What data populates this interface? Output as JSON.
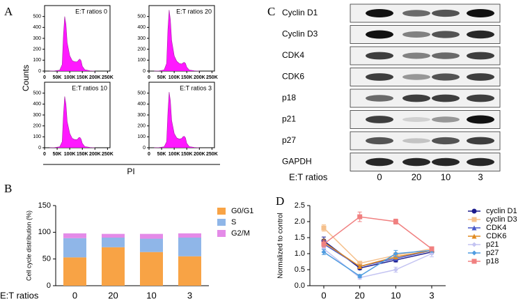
{
  "panel_labels": [
    "A",
    "B",
    "C",
    "D"
  ],
  "panel_a": {
    "ylabel": "Counts",
    "xlabel": "PI"
  },
  "chart_data": [
    {
      "type": "histogram",
      "title": "E:T ratios 0",
      "color": "#ff00ff",
      "x": [
        20000,
        40000,
        60000,
        70000,
        75000,
        80000,
        85000,
        90000,
        100000,
        110000,
        120000,
        130000,
        135000,
        140000,
        145000,
        150000,
        160000,
        180000,
        200000
      ],
      "values": [
        0,
        2,
        8,
        60,
        330,
        500,
        430,
        260,
        140,
        95,
        85,
        85,
        100,
        110,
        95,
        45,
        12,
        3,
        0
      ],
      "xlim": [
        0,
        260000
      ],
      "ylim": [
        0,
        600
      ],
      "xticks": [
        0,
        {
          "value": 50000,
          "label": "50K"
        },
        {
          "value": 100000,
          "label": "100K"
        },
        {
          "value": 150000,
          "label": "150K"
        },
        {
          "value": 200000,
          "label": "200K"
        },
        {
          "value": 250000,
          "label": "250K"
        }
      ],
      "yticks": [
        0,
        100,
        200,
        300,
        400,
        500
      ]
    },
    {
      "type": "histogram",
      "title": "E:T ratios 20",
      "color": "#ff00ff",
      "x": [
        20000,
        40000,
        60000,
        70000,
        75000,
        80000,
        85000,
        90000,
        100000,
        110000,
        120000,
        130000,
        135000,
        140000,
        145000,
        150000,
        160000,
        180000,
        200000
      ],
      "values": [
        0,
        2,
        10,
        70,
        380,
        560,
        470,
        280,
        140,
        90,
        70,
        65,
        75,
        80,
        70,
        35,
        10,
        3,
        0
      ],
      "xlim": [
        0,
        260000
      ],
      "ylim": [
        0,
        600
      ],
      "xticks": [
        0,
        {
          "value": 50000,
          "label": "50K"
        },
        {
          "value": 100000,
          "label": "100K"
        },
        {
          "value": 150000,
          "label": "150K"
        },
        {
          "value": 200000,
          "label": "200K"
        },
        {
          "value": 250000,
          "label": "250K"
        }
      ],
      "yticks": [
        0,
        100,
        200,
        300,
        400,
        500
      ]
    },
    {
      "type": "histogram",
      "title": "E:T ratios 10",
      "color": "#ff00ff",
      "x": [
        20000,
        40000,
        60000,
        70000,
        75000,
        80000,
        85000,
        90000,
        100000,
        110000,
        120000,
        130000,
        135000,
        140000,
        145000,
        150000,
        160000,
        180000,
        200000
      ],
      "values": [
        0,
        2,
        8,
        55,
        300,
        470,
        400,
        240,
        130,
        85,
        75,
        75,
        90,
        95,
        80,
        40,
        10,
        3,
        0
      ],
      "xlim": [
        0,
        260000
      ],
      "ylim": [
        0,
        600
      ],
      "xticks": [
        0,
        {
          "value": 50000,
          "label": "50K"
        },
        {
          "value": 100000,
          "label": "100K"
        },
        {
          "value": 150000,
          "label": "150K"
        },
        {
          "value": 200000,
          "label": "200K"
        },
        {
          "value": 250000,
          "label": "250K"
        }
      ],
      "yticks": [
        0,
        100,
        200,
        300,
        400,
        500
      ]
    },
    {
      "type": "histogram",
      "title": "E:T ratios 3",
      "color": "#ff00ff",
      "x": [
        20000,
        40000,
        60000,
        70000,
        75000,
        80000,
        85000,
        90000,
        100000,
        110000,
        120000,
        130000,
        135000,
        140000,
        145000,
        150000,
        160000,
        180000,
        200000
      ],
      "values": [
        0,
        2,
        8,
        55,
        320,
        510,
        430,
        250,
        130,
        90,
        80,
        85,
        100,
        105,
        90,
        40,
        10,
        3,
        0
      ],
      "xlim": [
        0,
        260000
      ],
      "ylim": [
        0,
        600
      ],
      "xticks": [
        0,
        {
          "value": 50000,
          "label": "50K"
        },
        {
          "value": 100000,
          "label": "100K"
        },
        {
          "value": 150000,
          "label": "150K"
        },
        {
          "value": 200000,
          "label": "200K"
        },
        {
          "value": 250000,
          "label": "250K"
        }
      ],
      "yticks": [
        0,
        100,
        200,
        300,
        400,
        500
      ]
    },
    {
      "type": "stacked-bar",
      "ylabel": "Cell cycle distribution (%)",
      "xlabel": "E:T ratios",
      "categories": [
        "0",
        "20",
        "10",
        "3"
      ],
      "series": [
        {
          "name": "G0/G1",
          "color": "#f8a345",
          "values": [
            53,
            72,
            63,
            55
          ]
        },
        {
          "name": "S",
          "color": "#8fb6e8",
          "values": [
            36,
            18,
            25,
            35
          ]
        },
        {
          "name": "G2/M",
          "color": "#e48be8",
          "values": [
            9,
            7,
            9,
            8
          ]
        }
      ],
      "ylim": [
        0,
        150
      ],
      "yticks": [
        0,
        50,
        100,
        150
      ]
    },
    {
      "type": "line",
      "ylabel": "Normalized to control",
      "categories": [
        "0",
        "20",
        "10",
        "3"
      ],
      "series": [
        {
          "name": "cyclin D1",
          "color": "#1a1a8c",
          "marker": "circle",
          "values": [
            1.4,
            0.55,
            0.8,
            1.05
          ],
          "errors": [
            0.12,
            0.05,
            0.06,
            0.06
          ]
        },
        {
          "name": "cyclin D3",
          "color": "#f5c08c",
          "marker": "square",
          "values": [
            1.8,
            0.7,
            0.95,
            1.15
          ],
          "errors": [
            0.1,
            0.05,
            0.08,
            0.06
          ]
        },
        {
          "name": "CDK4",
          "color": "#4858c8",
          "marker": "triangle",
          "values": [
            1.3,
            0.6,
            0.85,
            1.1
          ],
          "errors": [
            0.1,
            0.05,
            0.06,
            0.05
          ]
        },
        {
          "name": "CDK6",
          "color": "#e08a20",
          "marker": "triangle",
          "values": [
            1.35,
            0.6,
            0.9,
            1.1
          ],
          "errors": [
            0.1,
            0.05,
            0.06,
            0.05
          ]
        },
        {
          "name": "p21",
          "color": "#c4c4f2",
          "marker": "diamond",
          "values": [
            1.15,
            0.25,
            0.5,
            1.0
          ],
          "errors": [
            0.1,
            0.05,
            0.08,
            0.1
          ]
        },
        {
          "name": "p27",
          "color": "#4f9ce0",
          "marker": "diamond",
          "values": [
            1.05,
            0.3,
            1.0,
            1.1
          ],
          "errors": [
            0.08,
            0.05,
            0.1,
            0.06
          ]
        },
        {
          "name": "p18",
          "color": "#f08080",
          "marker": "square",
          "values": [
            1.3,
            2.15,
            2.0,
            1.15
          ],
          "errors": [
            0.1,
            0.15,
            0.08,
            0.06
          ]
        }
      ],
      "ylim": [
        0,
        2.5
      ],
      "yticks": [
        {
          "value": 0,
          "label": "0.0"
        },
        0.5,
        {
          "value": 1,
          "label": "1.0"
        },
        1.5,
        {
          "value": 2,
          "label": "2.0"
        },
        2.5
      ]
    }
  ],
  "blot": {
    "rows": [
      "Cyclin D1",
      "Cyclin D3",
      "CDK4",
      "CDK6",
      "p18",
      "p21",
      "p27",
      "GAPDH"
    ],
    "xlabel": "E:T ratios",
    "lanes": [
      "0",
      "20",
      "10",
      "3"
    ]
  }
}
